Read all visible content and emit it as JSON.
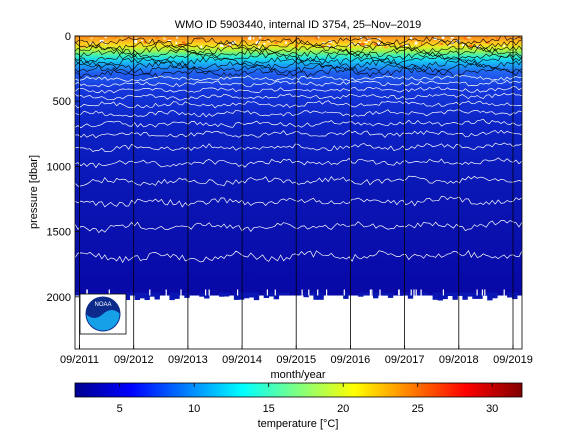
{
  "chart_data": {
    "type": "heatmap",
    "title": "WMO ID 5903440, internal ID 3754, 25–Nov–2019",
    "xlabel": "month/year",
    "ylabel": "pressure [dbar]",
    "x_ticks": [
      "09/2011",
      "09/2012",
      "09/2013",
      "09/2014",
      "09/2015",
      "09/2016",
      "09/2017",
      "09/2018",
      "09/2019"
    ],
    "x_range": [
      "2011-08",
      "2019-11"
    ],
    "y_ticks": [
      0,
      500,
      1000,
      1500,
      2000
    ],
    "ylim": [
      0,
      2400
    ],
    "y_reversed": true,
    "colorbar": {
      "label": "temperature [°C]",
      "ticks": [
        5,
        10,
        15,
        20,
        25,
        30
      ],
      "range": [
        2,
        32
      ],
      "colormap": "jet"
    },
    "isotherm_depths": {
      "white_contours_dbar": [
        330,
        370,
        420,
        470,
        530,
        600,
        680,
        760,
        860,
        980,
        1120,
        1280,
        1470,
        1700
      ],
      "black_contours_dbar": [
        50,
        80,
        110,
        140,
        170,
        200,
        230,
        260,
        290
      ]
    },
    "profile_bottom_dbar": 1990,
    "logo_text": "NOAA",
    "colors": {
      "deep_water": "#0a14b4",
      "surface_warm": "#ff9a1e",
      "contour_white": "#ffffff",
      "contour_black": "#000000"
    }
  }
}
